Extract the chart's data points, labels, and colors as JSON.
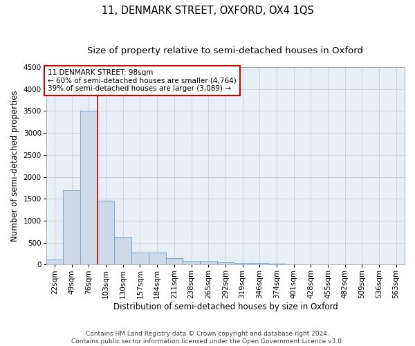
{
  "title": "11, DENMARK STREET, OXFORD, OX4 1QS",
  "subtitle": "Size of property relative to semi-detached houses in Oxford",
  "xlabel": "Distribution of semi-detached houses by size in Oxford",
  "ylabel": "Number of semi-detached properties",
  "categories": [
    "22sqm",
    "49sqm",
    "76sqm",
    "103sqm",
    "130sqm",
    "157sqm",
    "184sqm",
    "211sqm",
    "238sqm",
    "265sqm",
    "292sqm",
    "319sqm",
    "346sqm",
    "374sqm",
    "401sqm",
    "428sqm",
    "455sqm",
    "482sqm",
    "509sqm",
    "536sqm",
    "563sqm"
  ],
  "values": [
    110,
    1700,
    3500,
    1450,
    620,
    280,
    270,
    140,
    90,
    80,
    55,
    40,
    35,
    15,
    10,
    8,
    5,
    4,
    3,
    2,
    2
  ],
  "bar_color": "#ccd9e8",
  "bar_edge_color": "#6b9ec8",
  "grid_color": "#c5cfe0",
  "background_color": "#e8eef6",
  "annotation_box_facecolor": "#ffffff",
  "annotation_border_color": "#cc0000",
  "property_line_color": "#cc0000",
  "property_bin_index": 3,
  "annotation_text_line1": "11 DENMARK STREET: 98sqm",
  "annotation_text_line2": "← 60% of semi-detached houses are smaller (4,764)",
  "annotation_text_line3": "39% of semi-detached houses are larger (3,089) →",
  "ylim": [
    0,
    4500
  ],
  "yticks": [
    0,
    500,
    1000,
    1500,
    2000,
    2500,
    3000,
    3500,
    4000,
    4500
  ],
  "footer_line1": "Contains HM Land Registry data © Crown copyright and database right 2024.",
  "footer_line2": "Contains public sector information licensed under the Open Government Licence v3.0.",
  "title_fontsize": 10.5,
  "subtitle_fontsize": 9.5,
  "axis_label_fontsize": 8.5,
  "tick_fontsize": 7.5,
  "annotation_fontsize": 7.5,
  "footer_fontsize": 6.5
}
